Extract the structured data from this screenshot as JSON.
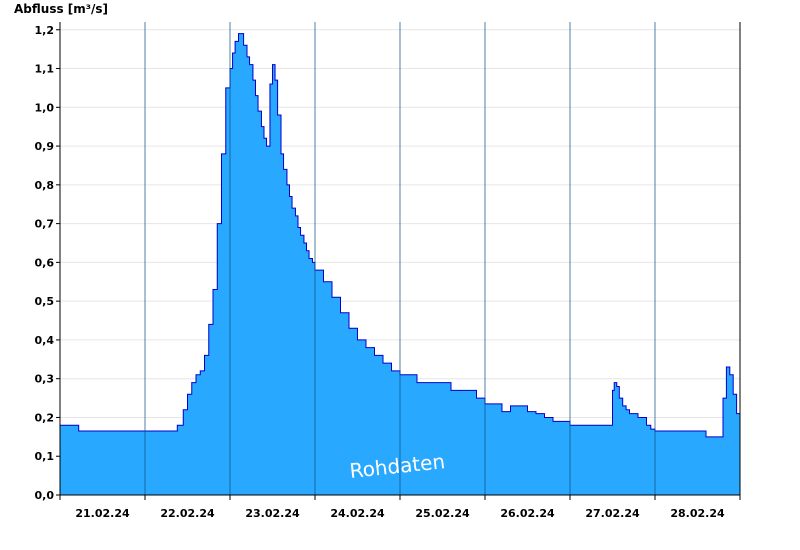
{
  "chart_data": {
    "type": "area",
    "ylabel": "Abfluss [m³/s]",
    "watermark": "Rohdaten",
    "ylim": [
      0,
      1.22
    ],
    "y_ticks": [
      "0,0",
      "0,1",
      "0,2",
      "0,3",
      "0,4",
      "0,5",
      "0,6",
      "0,7",
      "0,8",
      "0,9",
      "1,0",
      "1,1",
      "1,2"
    ],
    "x_ticks": [
      "21.02.24",
      "22.02.24",
      "23.02.24",
      "24.02.24",
      "25.02.24",
      "26.02.24",
      "27.02.24",
      "28.02.24"
    ],
    "x_range_days": [
      20.0,
      28.0
    ],
    "grid": "horizontal",
    "fill_color": "#29a8ff",
    "line_color": "#0000cc",
    "series": [
      {
        "x": [
          20.0,
          20.2,
          20.22,
          20.5,
          21.0,
          21.35,
          21.38,
          21.45,
          21.5,
          21.55,
          21.6,
          21.65,
          21.7,
          21.75,
          21.8,
          21.85,
          21.9,
          21.95,
          22.0,
          22.03,
          22.06,
          22.1,
          22.13,
          22.16,
          22.2,
          22.23,
          22.27,
          22.3,
          22.33,
          22.37,
          22.4,
          22.43,
          22.47,
          22.5,
          22.53,
          22.56,
          22.6,
          22.63,
          22.67,
          22.7,
          22.73,
          22.77,
          22.8,
          22.83,
          22.87,
          22.9,
          22.93,
          22.97,
          23.0,
          23.1,
          23.2,
          23.3,
          23.4,
          23.5,
          23.6,
          23.7,
          23.8,
          23.9,
          24.0,
          24.2,
          24.3,
          24.6,
          24.9,
          25.0,
          25.2,
          25.3,
          25.5,
          25.6,
          25.7,
          25.8,
          26.0,
          26.2,
          26.35,
          26.5,
          26.52,
          26.55,
          26.58,
          26.62,
          26.66,
          26.7,
          26.8,
          26.9,
          26.95,
          27.0,
          27.3,
          27.6,
          27.72,
          27.76,
          27.8,
          27.84,
          27.88,
          27.92,
          27.96,
          28.0
        ],
        "values": [
          0.18,
          0.18,
          0.165,
          0.165,
          0.165,
          0.165,
          0.18,
          0.22,
          0.26,
          0.29,
          0.31,
          0.32,
          0.36,
          0.44,
          0.53,
          0.7,
          0.88,
          1.05,
          1.1,
          1.14,
          1.17,
          1.19,
          1.19,
          1.16,
          1.13,
          1.11,
          1.07,
          1.03,
          0.99,
          0.95,
          0.92,
          0.9,
          1.06,
          1.11,
          1.07,
          0.98,
          0.88,
          0.84,
          0.8,
          0.77,
          0.74,
          0.72,
          0.69,
          0.67,
          0.65,
          0.63,
          0.61,
          0.6,
          0.58,
          0.55,
          0.51,
          0.47,
          0.43,
          0.4,
          0.38,
          0.36,
          0.34,
          0.32,
          0.31,
          0.29,
          0.29,
          0.27,
          0.25,
          0.235,
          0.215,
          0.23,
          0.215,
          0.21,
          0.2,
          0.19,
          0.18,
          0.18,
          0.18,
          0.27,
          0.29,
          0.28,
          0.25,
          0.23,
          0.22,
          0.21,
          0.2,
          0.18,
          0.17,
          0.165,
          0.165,
          0.15,
          0.15,
          0.15,
          0.25,
          0.33,
          0.31,
          0.26,
          0.21,
          0.17
        ]
      }
    ]
  }
}
